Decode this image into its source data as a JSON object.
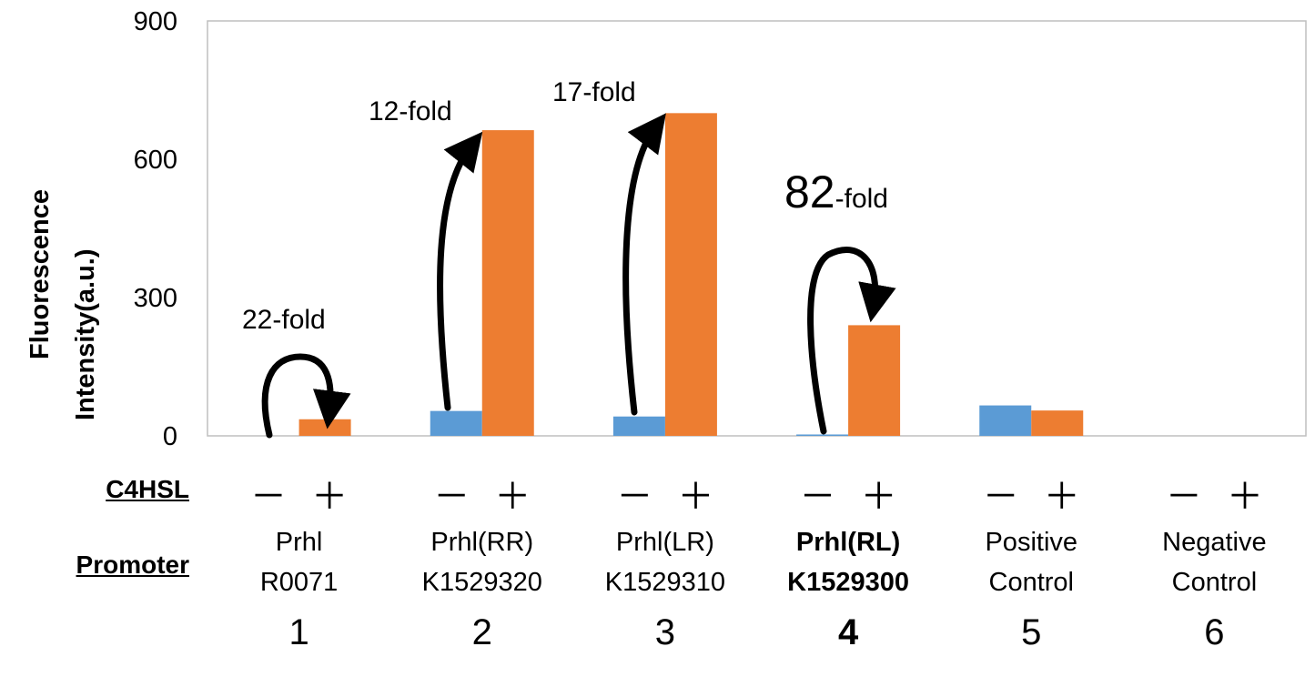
{
  "chart_data": {
    "type": "bar",
    "ylabel_line1": "Fluorescence",
    "ylabel_line2": "Intensity(a.u.)",
    "ylim": [
      0,
      900
    ],
    "yticks": [
      "900",
      "600",
      "300",
      "0"
    ],
    "grid": false,
    "categories": [
      "1",
      "2",
      "3",
      "4",
      "5",
      "6"
    ],
    "series": [
      {
        "condition": "−",
        "color": "#5b9bd5",
        "values": [
          0,
          54,
          42,
          3,
          66,
          0
        ]
      },
      {
        "condition": "+",
        "color": "#ed7d31",
        "values": [
          36,
          663,
          700,
          240,
          55,
          0
        ]
      }
    ],
    "row_labels": {
      "c4hsl": "C4HSL",
      "promoter": "Promoter"
    },
    "minus_plus": "－ ＋",
    "groups": [
      {
        "line1": "Prhl",
        "line2": "R0071",
        "number": "1",
        "bold": false
      },
      {
        "line1": "Prhl(RR)",
        "line2": "K1529320",
        "number": "2",
        "bold": false
      },
      {
        "line1": "Prhl(LR)",
        "line2": "K1529310",
        "number": "3",
        "bold": false
      },
      {
        "line1": "Prhl(RL)",
        "line2": "K1529300",
        "number": "4",
        "bold": true
      },
      {
        "line1": "Positive",
        "line2": "Control",
        "number": "5",
        "bold": false
      },
      {
        "line1": "Negative",
        "line2": "Control",
        "number": "6",
        "bold": false
      }
    ],
    "annotations": [
      {
        "group": 1,
        "text": "22-fold"
      },
      {
        "group": 2,
        "text": "12-fold"
      },
      {
        "group": 3,
        "text": "17-fold"
      },
      {
        "group": 4,
        "big": "82",
        "text": "-fold"
      }
    ]
  }
}
